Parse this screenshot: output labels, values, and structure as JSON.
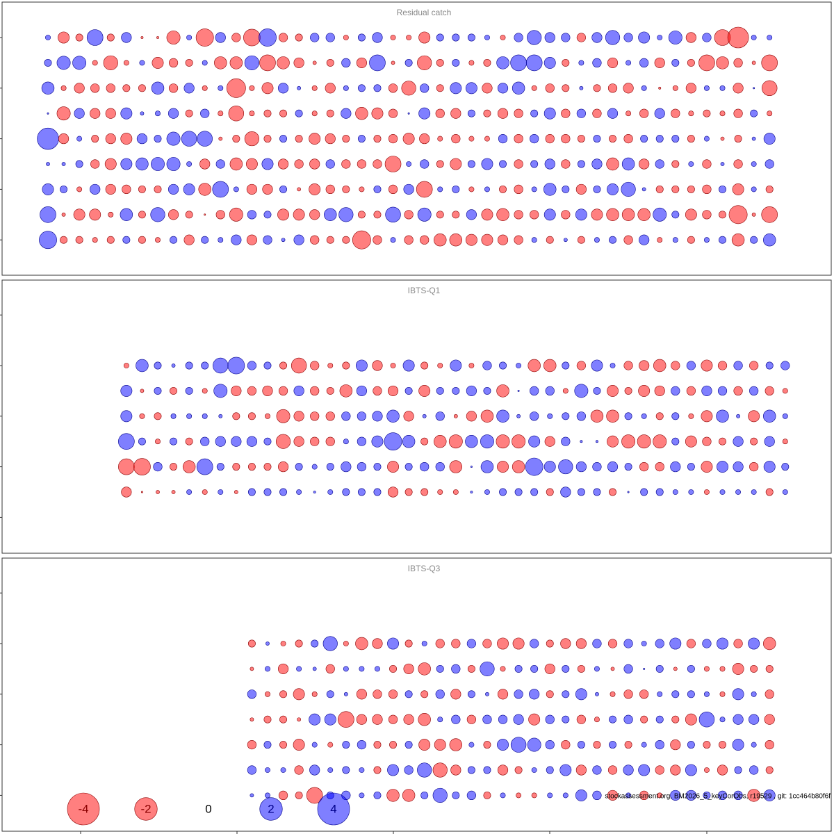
{
  "chart_data": [
    {
      "type": "bubble",
      "title": "Residual catch",
      "rows": [
        [
          0.1,
          -0.5,
          -0.2,
          1.0,
          -0.2,
          0.4,
          -0.02,
          -0.02,
          -0.7,
          0.1,
          -1.2,
          0.4,
          -0.3,
          -1.1,
          1.2,
          -0.3,
          -0.2,
          0.3,
          0.3,
          -0.1,
          0.2,
          0.4,
          -0.1,
          -0.1,
          -0.5,
          0.2,
          0.2,
          0.2,
          0.1,
          -0.1,
          0.3,
          0.8,
          0.4,
          0.3,
          -0.3,
          0.4,
          0.8,
          0.3,
          0.5,
          0.1,
          0.7,
          -0.4,
          0.3,
          -1.0,
          -1.7,
          0.1,
          0.1
        ],
        [
          0.2,
          0.7,
          0.7,
          -0.1,
          -0.8,
          -0.1,
          0.1,
          -0.5,
          -0.3,
          -0.2,
          0.1,
          -0.6,
          -0.6,
          0.8,
          -1.0,
          -0.6,
          -0.4,
          -0.05,
          -0.2,
          0.3,
          -0.4,
          1.0,
          -0.05,
          0.2,
          -0.8,
          -0.2,
          0.2,
          -0.1,
          -0.2,
          0.6,
          1.0,
          1.0,
          0.5,
          -0.2,
          0.1,
          0.3,
          -0.4,
          0.1,
          0.3,
          -0.4,
          0.2,
          -0.2,
          -1.0,
          -0.6,
          -0.3,
          -0.05,
          -1.0
        ],
        [
          0.6,
          -0.1,
          -0.4,
          -0.3,
          -0.3,
          -0.2,
          -0.2,
          0.6,
          -0.3,
          0.4,
          -0.1,
          0.1,
          -1.4,
          -0.1,
          -0.5,
          0.4,
          0.05,
          -0.1,
          -0.4,
          0.1,
          0.2,
          0.2,
          -0.3,
          -0.8,
          0.3,
          -0.2,
          0.5,
          0.5,
          -0.4,
          0.4,
          0.6,
          -0.1,
          -0.3,
          -0.2,
          0.05,
          -0.2,
          -0.3,
          -0.4,
          0.1,
          -0.02,
          -0.1,
          -0.4,
          0.1,
          0.1,
          -0.4,
          0.01,
          -0.9
        ],
        [
          0.01,
          -0.7,
          0.4,
          -0.4,
          -0.4,
          0.5,
          0.05,
          0.1,
          0.4,
          -0.2,
          0.3,
          -0.1,
          -0.9,
          -0.1,
          -0.2,
          -0.2,
          0.2,
          -0.1,
          -0.2,
          0.4,
          -0.6,
          -0.5,
          -0.3,
          0.01,
          0.5,
          -0.3,
          -0.4,
          0.2,
          -0.2,
          -0.4,
          -0.3,
          0.2,
          0.5,
          -0.3,
          0.3,
          -0.3,
          0.4,
          -0.1,
          -0.3,
          0.4,
          -0.3,
          -0.1,
          -0.2,
          -0.1,
          -0.3,
          0.2,
          -0.1
        ],
        [
          1.8,
          -0.4,
          0.1,
          -0.2,
          -0.4,
          -0.5,
          0.4,
          0.2,
          0.7,
          0.9,
          0.9,
          -0.05,
          -0.2,
          -0.8,
          -0.2,
          0.2,
          -0.2,
          -0.5,
          -0.4,
          -0.2,
          0.2,
          -0.2,
          -0.3,
          -0.5,
          -0.4,
          -0.1,
          -0.3,
          -0.1,
          -0.1,
          0.3,
          -0.3,
          0.3,
          -0.3,
          -0.3,
          -0.2,
          0.2,
          -0.2,
          -0.3,
          0.2,
          0.2,
          0.2,
          -0.2,
          0.1,
          -0.05,
          -0.2,
          0.05,
          0.5
        ],
        [
          0.05,
          0.05,
          0.2,
          -0.3,
          -0.5,
          0.5,
          0.6,
          0.7,
          0.7,
          0.1,
          -0.4,
          0.3,
          -0.6,
          -0.5,
          0.5,
          -0.4,
          -0.3,
          -0.4,
          0.3,
          -0.3,
          -0.3,
          -0.3,
          -1.0,
          0.1,
          0.3,
          -0.2,
          -0.5,
          0.2,
          0.5,
          0.2,
          -0.3,
          0.2,
          0.4,
          -0.3,
          0.2,
          0.4,
          -0.6,
          0.6,
          -0.4,
          0.3,
          -0.2,
          0.1,
          -0.3,
          0.05,
          -0.3,
          0.1,
          0.3
        ],
        [
          0.5,
          0.2,
          -0.1,
          0.4,
          -0.4,
          -0.3,
          -0.2,
          -0.2,
          0.4,
          0.5,
          -0.6,
          1.0,
          0.1,
          -0.4,
          -0.4,
          0.2,
          -0.05,
          -0.5,
          -0.3,
          -0.2,
          -0.1,
          0.2,
          -0.3,
          0.4,
          -1.0,
          0.1,
          0.2,
          -0.1,
          0.1,
          -0.2,
          -0.3,
          0.1,
          0.6,
          0.2,
          -0.4,
          0.2,
          0.5,
          0.8,
          0.05,
          -0.2,
          -0.2,
          -0.2,
          -0.3,
          0.2,
          -0.5,
          0.1,
          -0.2
        ],
        [
          1.0,
          -0.05,
          -0.5,
          -0.5,
          -0.1,
          0.6,
          -0.2,
          0.8,
          -0.4,
          -0.2,
          -0.01,
          -0.3,
          -0.7,
          0.3,
          0.2,
          -0.5,
          -0.5,
          -0.4,
          0.6,
          0.8,
          -0.2,
          -0.2,
          0.9,
          -0.3,
          0.7,
          -0.2,
          -0.2,
          0.4,
          -0.5,
          -0.6,
          -0.3,
          -0.3,
          0.5,
          -0.3,
          0.5,
          -0.5,
          -0.6,
          -0.6,
          -0.6,
          0.7,
          0.2,
          -0.5,
          -0.3,
          -0.2,
          -1.3,
          -0.05,
          -1.0
        ],
        [
          1.2,
          -0.2,
          -0.2,
          -0.1,
          -0.2,
          0.2,
          -0.2,
          -0.1,
          0.2,
          -0.4,
          0.2,
          0.1,
          0.4,
          -0.4,
          0.3,
          0.05,
          0.4,
          -0.3,
          -0.2,
          -0.2,
          -1.3,
          -0.3,
          0.1,
          -0.3,
          -0.3,
          -0.6,
          -0.6,
          -0.5,
          -0.5,
          -0.4,
          -0.3,
          0.1,
          -0.2,
          0.05,
          -0.2,
          0.1,
          0.2,
          -0.3,
          0.4,
          -0.1,
          0.1,
          -0.2,
          0.1,
          0.2,
          -0.6,
          0.2,
          0.6
        ]
      ]
    },
    {
      "type": "bubble",
      "title": "IBTS-Q1",
      "rows": [
        [
          null,
          null,
          null,
          null,
          null,
          -0.1,
          0.6,
          0.2,
          0.05,
          0.2,
          0.2,
          0.9,
          1.1,
          0.3,
          0.2,
          -0.2,
          -0.9,
          -0.3,
          -0.1,
          -0.2,
          0.5,
          -0.4,
          -0.1,
          0.5,
          -0.2,
          -0.1,
          0.5,
          -0.1,
          0.3,
          0.2,
          0.1,
          -0.6,
          -0.6,
          0.2,
          -0.3,
          0.5,
          0.1,
          -0.3,
          -0.4,
          -0.6,
          -0.3,
          0.3,
          -0.5,
          -0.3,
          0.3,
          -0.3,
          0.2,
          0.3
        ],
        [
          null,
          null,
          null,
          null,
          null,
          0.5,
          -0.05,
          0.2,
          -0.2,
          0.2,
          -0.1,
          0.7,
          -0.4,
          -0.3,
          -0.4,
          -0.3,
          0.4,
          -0.3,
          -0.2,
          -0.6,
          0.4,
          -0.3,
          -0.4,
          0.2,
          -0.5,
          0.2,
          0.2,
          0.4,
          0.2,
          -0.6,
          0.01,
          0.3,
          0.3,
          -0.1,
          0.7,
          0.2,
          -0.5,
          -0.2,
          -0.5,
          -0.4,
          0.3,
          -0.3,
          0.4,
          0.3,
          -0.3,
          0.3,
          -0.3,
          -0.1
        ],
        [
          null,
          null,
          null,
          null,
          null,
          0.5,
          -0.1,
          -0.2,
          0.1,
          0.1,
          0.1,
          0.05,
          -0.2,
          -0.2,
          -0.1,
          -0.7,
          -0.4,
          -0.3,
          -0.3,
          0.3,
          0.3,
          0.4,
          0.6,
          -0.4,
          0.05,
          0.3,
          -0.05,
          -0.4,
          -0.6,
          0.6,
          0.05,
          0.3,
          0.1,
          0.2,
          0.3,
          -0.6,
          -0.6,
          0.2,
          0.1,
          -0.2,
          0.2,
          -0.1,
          -0.5,
          0.6,
          0.05,
          -0.5,
          0.6,
          0.1
        ],
        [
          null,
          null,
          null,
          null,
          null,
          1.0,
          0.2,
          -0.1,
          0.2,
          -0.2,
          0.3,
          0.4,
          0.4,
          0.4,
          0.2,
          -0.8,
          -0.4,
          -0.3,
          -0.3,
          0.1,
          0.3,
          0.5,
          1.2,
          0.6,
          -0.2,
          -0.6,
          -0.7,
          0.6,
          0.7,
          -0.7,
          -0.7,
          0.5,
          -0.4,
          0.3,
          0.02,
          0.02,
          -0.5,
          -0.7,
          -0.7,
          -0.7,
          0.2,
          -0.5,
          -0.3,
          -0.2,
          0.4,
          -0.2,
          0.4,
          -0.1
        ],
        [
          null,
          null,
          null,
          null,
          null,
          -1.0,
          -1.1,
          0.3,
          -0.2,
          -0.6,
          1.0,
          0.2,
          -0.2,
          -0.2,
          -0.2,
          -0.4,
          0.2,
          0.1,
          0.2,
          0.4,
          0.3,
          0.2,
          -0.5,
          0.2,
          0.3,
          0.3,
          -0.6,
          0.01,
          0.6,
          -0.5,
          -0.6,
          1.2,
          0.5,
          0.8,
          0.4,
          0.3,
          0.4,
          0.2,
          -0.3,
          -0.3,
          0.4,
          0.2,
          -0.5,
          0.5,
          0.4,
          -0.3,
          0.5,
          0.2
        ],
        [
          null,
          null,
          null,
          null,
          null,
          -0.4,
          -0.01,
          -0.05,
          -0.05,
          0.1,
          -0.1,
          0.1,
          -0.05,
          0.2,
          0.2,
          0.2,
          0.1,
          0.02,
          0.1,
          0.2,
          0.2,
          0.2,
          -0.4,
          -0.2,
          -0.2,
          -0.1,
          -0.1,
          0.02,
          0.1,
          0.2,
          0.2,
          0.2,
          -0.2,
          0.4,
          0.2,
          0.2,
          -0.2,
          0.01,
          0.2,
          0.2,
          0.1,
          0.1,
          -0.1,
          0.1,
          0.1,
          0.1,
          -0.2,
          0.1
        ]
      ]
    },
    {
      "type": "bubble",
      "title": "IBTS-Q3",
      "rows": [
        [
          null,
          null,
          null,
          null,
          null,
          null,
          null,
          null,
          null,
          null,
          null,
          null,
          null,
          -0.2,
          0.05,
          -0.1,
          -0.2,
          0.2,
          0.8,
          -0.1,
          -0.6,
          -0.4,
          0.5,
          -0.2,
          0.1,
          -0.3,
          -0.3,
          0.3,
          -0.3,
          -0.5,
          -0.5,
          0.3,
          -0.2,
          -0.4,
          -0.4,
          0.3,
          -0.3,
          0.3,
          0.1,
          0.3,
          0.5,
          -0.3,
          0.3,
          0.5,
          -0.3,
          0.5,
          -0.6
        ],
        [
          null,
          null,
          null,
          null,
          null,
          null,
          null,
          null,
          null,
          null,
          null,
          null,
          null,
          -0.05,
          0.1,
          -0.4,
          0.1,
          0.05,
          -0.3,
          0.1,
          0.1,
          0.1,
          -0.2,
          -0.4,
          -0.6,
          0.2,
          0.3,
          -0.2,
          0.8,
          -0.1,
          0.2,
          0.2,
          -0.4,
          0.2,
          -0.2,
          0.1,
          -0.05,
          0.3,
          0.01,
          0.2,
          -0.05,
          0.2,
          -0.1,
          -0.1,
          -0.5,
          -0.2,
          -0.2
        ],
        [
          null,
          null,
          null,
          null,
          null,
          null,
          null,
          null,
          null,
          null,
          null,
          null,
          null,
          0.3,
          -0.1,
          -0.2,
          -0.5,
          -0.1,
          0.2,
          0.05,
          -0.4,
          -0.3,
          -0.3,
          0.2,
          -0.2,
          0.3,
          -0.4,
          0.2,
          0.05,
          -0.4,
          0.3,
          0.4,
          -0.2,
          0.2,
          0.5,
          0.05,
          -0.1,
          -0.3,
          -0.3,
          0.1,
          0.2,
          0.2,
          0.1,
          -0.1,
          0.5,
          0.1,
          -0.3
        ],
        [
          null,
          null,
          null,
          null,
          null,
          null,
          null,
          null,
          null,
          null,
          null,
          null,
          null,
          -0.05,
          -0.2,
          -0.2,
          -0.05,
          0.5,
          0.5,
          -1.0,
          -0.4,
          -0.4,
          -0.3,
          -0.4,
          -0.6,
          0.1,
          0.3,
          -0.3,
          0.3,
          0.3,
          0.4,
          -0.5,
          0.3,
          0.2,
          -0.3,
          -0.1,
          0.2,
          0.3,
          -0.2,
          0.2,
          -0.2,
          -0.5,
          0.9,
          0.1,
          0.4,
          0.4,
          -0.4
        ],
        [
          null,
          null,
          null,
          null,
          null,
          null,
          null,
          null,
          null,
          null,
          null,
          null,
          null,
          -0.3,
          0.2,
          -0.2,
          -0.5,
          0.1,
          -0.1,
          0.2,
          0.3,
          -0.2,
          -0.2,
          0.2,
          -0.5,
          -0.5,
          -0.6,
          0.1,
          -0.2,
          0.5,
          0.9,
          0.7,
          0.3,
          -0.3,
          0.2,
          -0.2,
          0.2,
          -0.2,
          0.1,
          0.3,
          -0.4,
          0.2,
          -0.2,
          -0.2,
          0.5,
          0.1,
          -0.3
        ],
        [
          null,
          null,
          null,
          null,
          null,
          null,
          null,
          null,
          null,
          null,
          null,
          null,
          null,
          0.3,
          0.1,
          0.1,
          -0.3,
          0.4,
          0.1,
          0.2,
          0.1,
          -0.2,
          0.5,
          0.3,
          0.8,
          -0.8,
          -0.4,
          0.2,
          0.2,
          -0.4,
          -0.2,
          0.1,
          0.2,
          0.5,
          -0.4,
          0.3,
          -0.3,
          0.4,
          0.5,
          -0.3,
          -0.4,
          0.5,
          -0.1,
          -0.4,
          0.2,
          0.3,
          -0.2
        ],
        [
          null,
          null,
          null,
          null,
          null,
          null,
          null,
          null,
          null,
          null,
          null,
          null,
          null,
          0.05,
          0.1,
          -0.3,
          -0.2,
          -1.0,
          0.2,
          0.3,
          0.1,
          0.2,
          -0.6,
          -0.6,
          0.2,
          0.8,
          0.2,
          0.3,
          -0.2,
          0.1,
          -0.1,
          -0.1,
          0.1,
          0.1,
          0.5,
          0.3,
          -0.4,
          0.1,
          -0.3,
          -0.1,
          0.4,
          0.4,
          0.2,
          0.3,
          0.3,
          -0.6,
          0.5
        ]
      ]
    }
  ],
  "colors": {
    "positive": "#0000ff",
    "negative": "#ff0000"
  },
  "legend": {
    "values": [
      -4,
      -2,
      0,
      2,
      4
    ]
  },
  "footer": "stockassessment.org, BM2026_5_keyCorObs, r19529 , git: 1cc464b80f6f"
}
